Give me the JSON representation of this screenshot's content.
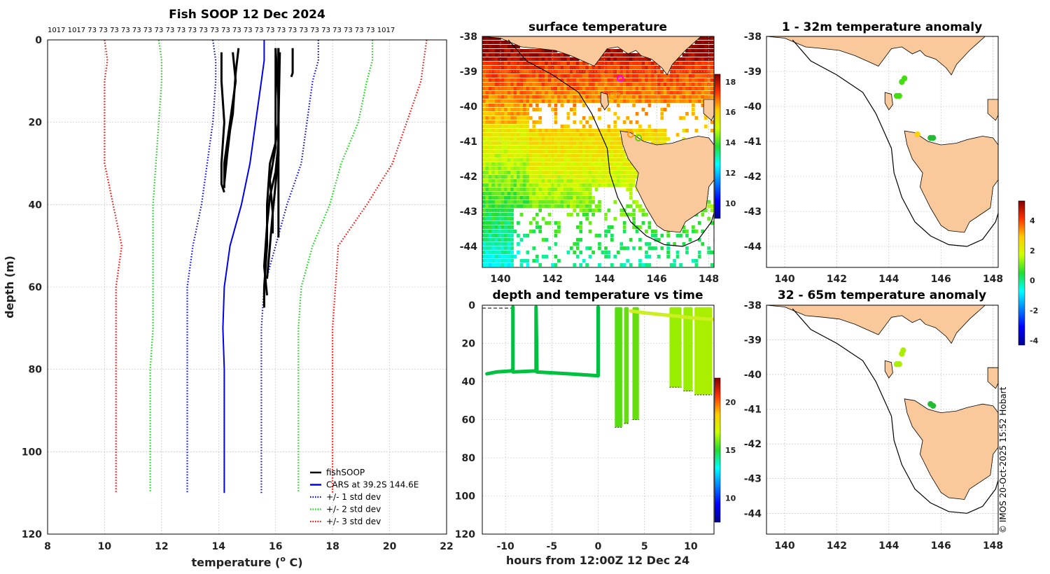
{
  "chart_data": [
    {
      "type": "line",
      "title": "Fish SOOP 12 Dec 2024",
      "xlabel": "temperature (",
      "xlabel_sup": "o",
      "xlabel_tail": " C)",
      "ylabel": "depth (m)",
      "xlim": [
        8,
        22
      ],
      "ylim": [
        120,
        0
      ],
      "xticks": [
        "8",
        "10",
        "12",
        "14",
        "16",
        "18",
        "20",
        "22"
      ],
      "yticks": [
        "0",
        "20",
        "40",
        "60",
        "80",
        "100",
        "120"
      ],
      "top_labels": "1017 1017 73 73 73 73 73 73 73 73 73 73 73 73 73 73 73 73 73 73 73 73 73 73 73 73 73 73 1017",
      "series": [
        {
          "name": "+/- 3 std dev",
          "color": "#ff0000",
          "style": "dotted",
          "points": [
            [
              10,
              0
            ],
            [
              10.1,
              5
            ],
            [
              10,
              10
            ],
            [
              10,
              20
            ],
            [
              10,
              30
            ],
            [
              10.3,
              40
            ],
            [
              10.6,
              50
            ],
            [
              10.4,
              60
            ],
            [
              10.4,
              70
            ],
            [
              10.4,
              80
            ],
            [
              10.4,
              90
            ],
            [
              10.4,
              110
            ]
          ]
        },
        {
          "name": "+/- 3 std dev",
          "color": "#ff0000",
          "style": "dotted",
          "points": [
            [
              21.3,
              0
            ],
            [
              21.2,
              5
            ],
            [
              21.1,
              10
            ],
            [
              20.6,
              20
            ],
            [
              20.1,
              30
            ],
            [
              19.2,
              40
            ],
            [
              18.2,
              50
            ],
            [
              18.1,
              60
            ],
            [
              18,
              70
            ],
            [
              18,
              80
            ],
            [
              18,
              90
            ],
            [
              18,
              110
            ]
          ]
        },
        {
          "name": "+/- 2 std dev",
          "color": "#00dd00",
          "style": "dotted",
          "points": [
            [
              11.9,
              0
            ],
            [
              12,
              5
            ],
            [
              12,
              10
            ],
            [
              11.9,
              20
            ],
            [
              11.8,
              30
            ],
            [
              11.7,
              40
            ],
            [
              11.7,
              50
            ],
            [
              11.7,
              60
            ],
            [
              11.7,
              70
            ],
            [
              11.6,
              80
            ],
            [
              11.6,
              90
            ],
            [
              11.6,
              110
            ]
          ]
        },
        {
          "name": "+/- 2 std dev",
          "color": "#00dd00",
          "style": "dotted",
          "points": [
            [
              19.4,
              0
            ],
            [
              19.4,
              5
            ],
            [
              19.2,
              10
            ],
            [
              18.9,
              20
            ],
            [
              18.3,
              30
            ],
            [
              17.9,
              40
            ],
            [
              17.3,
              50
            ],
            [
              16.9,
              60
            ],
            [
              16.8,
              70
            ],
            [
              16.8,
              80
            ],
            [
              16.8,
              90
            ],
            [
              16.8,
              110
            ]
          ]
        },
        {
          "name": "+/- 1 std dev",
          "color": "#0000ee",
          "style": "dotted",
          "points": [
            [
              13.8,
              0
            ],
            [
              13.9,
              5
            ],
            [
              13.9,
              10
            ],
            [
              13.8,
              20
            ],
            [
              13.6,
              30
            ],
            [
              13.4,
              40
            ],
            [
              13.1,
              50
            ],
            [
              12.9,
              60
            ],
            [
              12.9,
              70
            ],
            [
              12.9,
              80
            ],
            [
              12.9,
              90
            ],
            [
              12.9,
              110
            ]
          ]
        },
        {
          "name": "+/- 1 std dev",
          "color": "#0000ee",
          "style": "dotted",
          "points": [
            [
              17.5,
              0
            ],
            [
              17.5,
              5
            ],
            [
              17.3,
              10
            ],
            [
              17.1,
              20
            ],
            [
              16.9,
              30
            ],
            [
              16.4,
              40
            ],
            [
              16,
              50
            ],
            [
              15.6,
              60
            ],
            [
              15.5,
              70
            ],
            [
              15.5,
              80
            ],
            [
              15.5,
              90
            ],
            [
              15.5,
              110
            ]
          ]
        },
        {
          "name": "CARS at 39.2S 144.6E",
          "color": "#0000ee",
          "style": "solid",
          "points": [
            [
              15.6,
              0
            ],
            [
              15.6,
              5
            ],
            [
              15.5,
              10
            ],
            [
              15.3,
              20
            ],
            [
              15.1,
              30
            ],
            [
              14.8,
              40
            ],
            [
              14.4,
              50
            ],
            [
              14.2,
              60
            ],
            [
              14.15,
              70
            ],
            [
              14.2,
              80
            ],
            [
              14.2,
              90
            ],
            [
              14.2,
              110
            ]
          ]
        },
        {
          "name": "fishSOOP",
          "color": "#000000",
          "style": "solid",
          "points": [
            [
              14.1,
              3
            ],
            [
              14.1,
              10
            ],
            [
              14.2,
              20
            ],
            [
              14.1,
              30
            ],
            [
              14.1,
              35
            ],
            [
              14.2,
              37
            ]
          ]
        },
        {
          "name": "fishSOOP",
          "color": "#000000",
          "style": "solid",
          "points": [
            [
              14.5,
              3
            ],
            [
              14.6,
              10
            ],
            [
              14.4,
              20
            ],
            [
              14.3,
              25
            ],
            [
              14.2,
              30
            ],
            [
              14.2,
              36
            ]
          ]
        },
        {
          "name": "fishSOOP",
          "color": "#000000",
          "style": "solid",
          "points": [
            [
              14.7,
              2
            ],
            [
              14.6,
              8
            ],
            [
              14.5,
              18
            ],
            [
              14.4,
              22
            ],
            [
              14.3,
              28
            ],
            [
              14.2,
              35
            ]
          ]
        },
        {
          "name": "fishSOOP",
          "color": "#000000",
          "style": "solid",
          "points": [
            [
              16.1,
              2
            ],
            [
              16.1,
              10
            ],
            [
              16.1,
              20
            ],
            [
              16.0,
              25
            ],
            [
              15.8,
              30
            ],
            [
              15.7,
              40
            ],
            [
              15.7,
              50
            ],
            [
              15.6,
              60
            ],
            [
              15.6,
              65
            ]
          ]
        },
        {
          "name": "fishSOOP",
          "color": "#000000",
          "style": "solid",
          "points": [
            [
              16.0,
              2
            ],
            [
              16.1,
              15
            ],
            [
              16.1,
              25
            ],
            [
              16.0,
              32
            ],
            [
              15.8,
              38
            ],
            [
              15.7,
              45
            ],
            [
              15.6,
              55
            ],
            [
              15.7,
              62
            ]
          ]
        },
        {
          "name": "fishSOOP",
          "color": "#000000",
          "style": "solid",
          "points": [
            [
              16.15,
              3
            ],
            [
              16.1,
              20
            ],
            [
              16.1,
              28
            ],
            [
              16.0,
              35
            ],
            [
              15.9,
              42
            ],
            [
              15.8,
              50
            ],
            [
              15.7,
              58
            ]
          ]
        },
        {
          "name": "fishSOOP",
          "color": "#000000",
          "style": "solid",
          "points": [
            [
              16.1,
              2
            ],
            [
              16.1,
              15
            ],
            [
              16.1,
              30
            ],
            [
              16.1,
              40
            ],
            [
              16.1,
              48
            ]
          ]
        },
        {
          "name": "fishSOOP",
          "color": "#000000",
          "style": "solid",
          "points": [
            [
              16.0,
              2
            ],
            [
              16.0,
              12
            ],
            [
              16.0,
              26
            ],
            [
              15.8,
              34
            ],
            [
              15.9,
              42
            ],
            [
              15.9,
              47
            ]
          ]
        },
        {
          "name": "fishSOOP",
          "color": "#000000",
          "style": "solid",
          "points": [
            [
              16.6,
              2
            ],
            [
              16.6,
              5
            ],
            [
              16.6,
              8
            ],
            [
              16.55,
              9
            ]
          ]
        }
      ],
      "legend": [
        {
          "label": "fishSOOP",
          "color": "#000000",
          "style": "solid"
        },
        {
          "label": "CARS at 39.2S 144.6E",
          "color": "#0000ee",
          "style": "solid"
        },
        {
          "label": "+/- 1 std dev",
          "color": "#0000ee",
          "style": "dotted"
        },
        {
          "label": "+/- 2 std dev",
          "color": "#00dd00",
          "style": "dotted"
        },
        {
          "label": "+/- 3 std dev",
          "color": "#ff0000",
          "style": "dotted"
        }
      ]
    },
    {
      "type": "heatmap",
      "title": "surface temperature",
      "xlim": [
        139.3,
        148.2
      ],
      "ylim": [
        -44.6,
        -38
      ],
      "xticks": [
        "140",
        "142",
        "144",
        "146",
        "148"
      ],
      "yticks": [
        "-38",
        "-39",
        "-40",
        "-41",
        "-42",
        "-43",
        "-44"
      ],
      "colorbar": {
        "min": 9,
        "max": 18.5,
        "ticks": [
          "10",
          "12",
          "14",
          "16",
          "18"
        ]
      },
      "profile_markers": [
        {
          "lon": 144.6,
          "lat": -39.2,
          "color": "#ff00ff"
        },
        {
          "lon": 144.3,
          "lat": -39.7,
          "color": "#ff9900"
        },
        {
          "lon": 144.5,
          "lat": -39.7,
          "color": "#ff9900"
        },
        {
          "lon": 145.0,
          "lat": -40.8,
          "color": "#ff9900"
        },
        {
          "lon": 145.3,
          "lat": -40.9,
          "color": "#66cc00"
        }
      ]
    },
    {
      "type": "scatter",
      "title": "depth and temperature vs time",
      "xlabel": "hours from 12:00Z 12 Dec 24",
      "xlim": [
        -12.5,
        12.5
      ],
      "ylim": [
        120,
        0
      ],
      "xticks": [
        "-10",
        "-5",
        "0",
        "5",
        "10"
      ],
      "yticks": [
        "0",
        "20",
        "40",
        "60",
        "80",
        "100",
        "120"
      ],
      "colorbar": {
        "min": 7.5,
        "max": 22.5,
        "ticks": [
          "10",
          "15",
          "20"
        ]
      },
      "traces": [
        {
          "name": "towed trace",
          "color": "#00c040",
          "points": [
            [
              -12,
              36
            ],
            [
              -11,
              35
            ],
            [
              -9.5,
              34.5
            ],
            [
              -9.2,
              34
            ],
            [
              -9.2,
              1
            ],
            [
              -9.2,
              35
            ],
            [
              -7,
              34.5
            ],
            [
              -6.7,
              34.5
            ],
            [
              -6.7,
              1
            ],
            [
              -6.6,
              35
            ],
            [
              -3,
              36
            ],
            [
              0,
              37
            ],
            [
              0,
              1
            ]
          ]
        },
        {
          "name": "profile band 1",
          "color": "#55dd10",
          "xrange": [
            1.8,
            2.6
          ],
          "depth": 64
        },
        {
          "name": "profile band 2",
          "color": "#66dd10",
          "xrange": [
            2.8,
            3.3
          ],
          "depth": 62
        },
        {
          "name": "profile band 3",
          "color": "#66dd10",
          "xrange": [
            3.7,
            4.4
          ],
          "depth": 60
        },
        {
          "name": "profile band 4",
          "color": "#99ee00",
          "xrange": [
            7.7,
            9.0
          ],
          "depth": 43
        },
        {
          "name": "profile band 5",
          "color": "#99ee00",
          "xrange": [
            9.2,
            10.2
          ],
          "depth": 45
        },
        {
          "name": "profile band 6",
          "color": "#aaee00",
          "xrange": [
            10.4,
            12.3
          ],
          "depth": 47
        },
        {
          "name": "surface trace",
          "color": "#ccee22",
          "points": [
            [
              3.5,
              3
            ],
            [
              5,
              4
            ],
            [
              7,
              5
            ],
            [
              9,
              6
            ],
            [
              11,
              7
            ],
            [
              12.5,
              7.5
            ]
          ]
        }
      ]
    },
    {
      "type": "scatter",
      "title": "1 - 32m temperature anomaly",
      "xlim": [
        139.3,
        148.2
      ],
      "ylim": [
        -44.6,
        -38
      ],
      "xticks": [
        "140",
        "142",
        "144",
        "146",
        "148"
      ],
      "yticks": [
        "-38",
        "-39",
        "-40",
        "-41",
        "-42",
        "-43",
        "-44"
      ],
      "points": [
        {
          "lon": 144.6,
          "lat": -39.2,
          "color": "#44dd11"
        },
        {
          "lon": 144.5,
          "lat": -39.3,
          "color": "#44dd11"
        },
        {
          "lon": 144.3,
          "lat": -39.7,
          "color": "#44dd11"
        },
        {
          "lon": 144.4,
          "lat": -39.7,
          "color": "#44dd11"
        },
        {
          "lon": 145.1,
          "lat": -40.8,
          "color": "#ffd000"
        },
        {
          "lon": 145.6,
          "lat": -40.9,
          "color": "#22bb33"
        },
        {
          "lon": 145.7,
          "lat": -40.9,
          "color": "#22bb33"
        }
      ]
    },
    {
      "type": "scatter",
      "title": "32 - 65m temperature anomaly",
      "xlim": [
        139.3,
        148.2
      ],
      "ylim": [
        -44.6,
        -38
      ],
      "xticks": [
        "140",
        "142",
        "144",
        "146",
        "148"
      ],
      "yticks": [
        "-38",
        "-39",
        "-40",
        "-41",
        "-42",
        "-43",
        "-44"
      ],
      "points": [
        {
          "lon": 144.55,
          "lat": -39.3,
          "color": "#aaee00"
        },
        {
          "lon": 144.5,
          "lat": -39.4,
          "color": "#aaee00"
        },
        {
          "lon": 144.3,
          "lat": -39.7,
          "color": "#aaee00"
        },
        {
          "lon": 144.4,
          "lat": -39.7,
          "color": "#aaee00"
        },
        {
          "lon": 145.6,
          "lat": -40.85,
          "color": "#22bb33"
        },
        {
          "lon": 145.7,
          "lat": -40.9,
          "color": "#22bb33"
        }
      ],
      "colorbar": {
        "min": -4.3,
        "max": 5.3,
        "ticks": [
          "4",
          "2",
          "0",
          "-2",
          "-4"
        ]
      }
    }
  ],
  "credit": "© IMOS 20-Oct-2025 15:52 Hobart"
}
